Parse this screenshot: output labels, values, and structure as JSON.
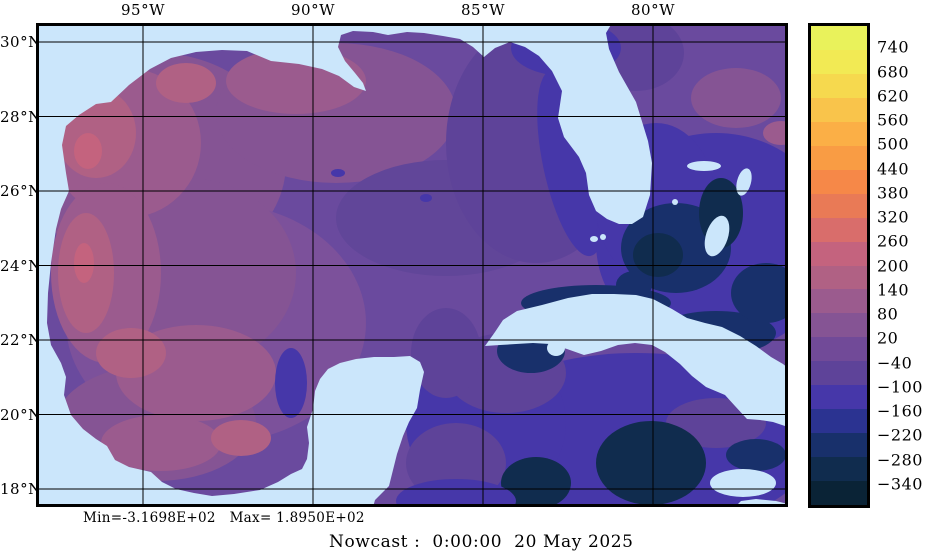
{
  "caption": "Nowcast :  0:00:00  20 May 2025",
  "stats_line": "Min=-3.1698E+02   Max= 1.8950E+02",
  "axes": {
    "lon_ticks": [
      "95°W",
      "90°W",
      "85°W",
      "80°W"
    ],
    "lat_ticks": [
      "30°N",
      "28°N",
      "26°N",
      "24°N",
      "22°N",
      "20°N",
      "18°N"
    ]
  },
  "colorbar": {
    "ticks": [
      "740",
      "680",
      "620",
      "560",
      "500",
      "440",
      "380",
      "320",
      "260",
      "200",
      "140",
      "80",
      "20",
      "−40",
      "−100",
      "−160",
      "−220",
      "−280",
      "−340"
    ],
    "band_colors": [
      "#e9f25b",
      "#f2ea54",
      "#f6d94e",
      "#f9c44b",
      "#fbaf46",
      "#f99c44",
      "#f68848",
      "#e97a56",
      "#d96d6b",
      "#c4637e",
      "#b06184",
      "#9b5b8e",
      "#855494",
      "#714a98",
      "#5e4399",
      "#4637a9",
      "#2b3391",
      "#18306b",
      "#102c4e",
      "#0a2336"
    ]
  },
  "map_colors": {
    "land": "#cbe6fb",
    "ocean_base": "#6a4a9e",
    "grid": "#000000",
    "frame": "#000000"
  },
  "chart_data": {
    "type": "heatmap",
    "subtype": "filled-contour-geographic-map",
    "region": "Gulf of Mexico and northwest Caribbean",
    "title": "Nowcast :  0:00:00  20 May 2025",
    "x_tick_labels": [
      "95°W",
      "90°W",
      "85°W",
      "80°W"
    ],
    "y_tick_labels": [
      "30°N",
      "28°N",
      "26°N",
      "24°N",
      "22°N",
      "20°N",
      "18°N"
    ],
    "lon_range_deg_west": [
      98.1,
      76.0
    ],
    "lat_range_deg_north": [
      17.5,
      30.5
    ],
    "grid": true,
    "legend_position": "right-colorbar",
    "colorbar_levels": [
      740,
      680,
      620,
      560,
      500,
      440,
      380,
      320,
      260,
      200,
      140,
      80,
      20,
      -40,
      -100,
      -160,
      -220,
      -280,
      -340
    ],
    "colorbar_band_colors_top_to_bottom": [
      "#e9f25b",
      "#f2ea54",
      "#f6d94e",
      "#f9c44b",
      "#fbaf46",
      "#f99c44",
      "#f68848",
      "#e97a56",
      "#d96d6b",
      "#c4637e",
      "#b06184",
      "#9b5b8e",
      "#855494",
      "#714a98",
      "#5e4399",
      "#4637a9",
      "#2b3391",
      "#18306b",
      "#102c4e",
      "#0a2336"
    ],
    "field_min": -316.98,
    "field_max": 189.5,
    "notes": "Field over ocean spans roughly -340 to +200; western Gulf shows positive (pink/mauve) anomalies, eastern Gulf, Atlantic and Caribbean show negative (indigo/navy) values; land is masked pale blue"
  }
}
